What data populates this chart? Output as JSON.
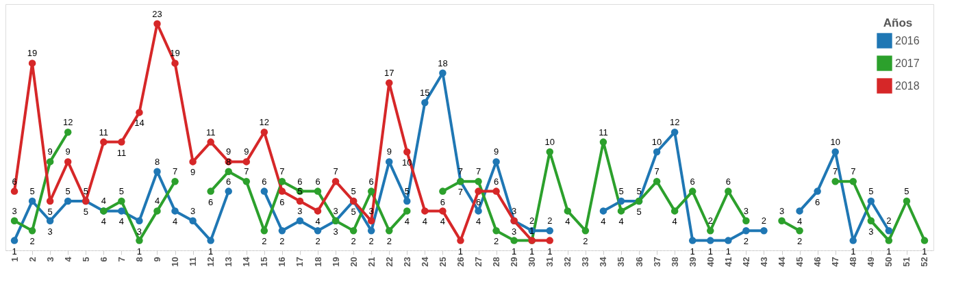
{
  "chart_data": {
    "type": "line",
    "legend_title": "Años",
    "categories": [
      "1",
      "2",
      "3",
      "4",
      "5",
      "6",
      "7",
      "8",
      "9",
      "10",
      "11",
      "12",
      "13",
      "14",
      "15",
      "16",
      "17",
      "18",
      "19",
      "20",
      "21",
      "22",
      "23",
      "24",
      "25",
      "26",
      "27",
      "28",
      "29",
      "30",
      "31",
      "32",
      "33",
      "34",
      "35",
      "36",
      "37",
      "38",
      "39",
      "40",
      "41",
      "42",
      "43",
      "44",
      "45",
      "46",
      "47",
      "48",
      "49",
      "50",
      "51",
      "52"
    ],
    "series": [
      {
        "name": "2016",
        "color": "#1f77b4",
        "values": [
          1,
          5,
          3,
          5,
          5,
          4,
          4,
          3,
          8,
          4,
          3,
          1,
          6,
          null,
          6,
          2,
          3,
          2,
          3,
          5,
          2,
          9,
          5,
          15,
          18,
          7,
          4,
          9,
          3,
          2,
          2,
          null,
          null,
          4,
          5,
          5,
          10,
          12,
          1,
          1,
          1,
          2,
          2,
          null,
          4,
          6,
          10,
          1,
          5,
          2,
          null,
          null
        ]
      },
      {
        "name": "2017",
        "color": "#2ca02c",
        "values": [
          3,
          2,
          9,
          12,
          null,
          4,
          5,
          1,
          4,
          7,
          null,
          6,
          8,
          7,
          2,
          7,
          6,
          6,
          3,
          2,
          6,
          2,
          4,
          null,
          6,
          7,
          7,
          2,
          1,
          1,
          10,
          4,
          2,
          11,
          4,
          5,
          7,
          4,
          6,
          2,
          6,
          3,
          null,
          3,
          2,
          null,
          7,
          7,
          3,
          1,
          5,
          1
        ]
      },
      {
        "name": "2018",
        "color": "#d62728",
        "values": [
          6,
          19,
          5,
          9,
          5,
          11,
          11,
          14,
          23,
          19,
          9,
          11,
          9,
          9,
          12,
          6,
          5,
          4,
          7,
          5,
          3,
          17,
          10,
          4,
          4,
          1,
          6,
          6,
          3,
          1,
          1,
          null,
          null,
          null,
          null,
          null,
          null,
          null,
          null,
          null,
          null,
          null,
          null,
          null,
          null,
          null,
          null,
          null,
          null,
          null,
          null,
          null
        ]
      }
    ],
    "ylim": [
      0,
      25
    ],
    "data_labels": true,
    "marker": "circle",
    "grid": false,
    "legend": "top right",
    "tick_labels": "x"
  }
}
